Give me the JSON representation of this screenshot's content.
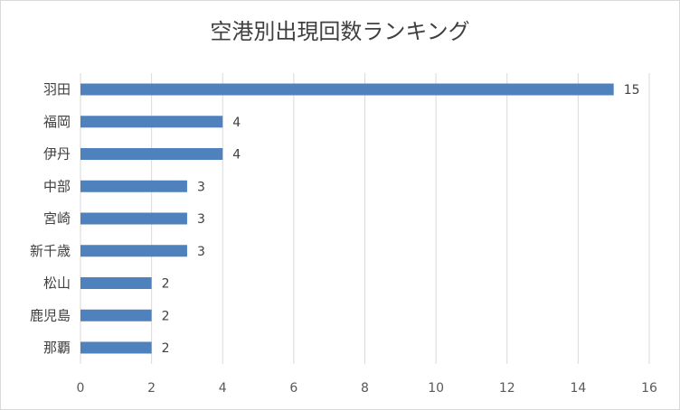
{
  "chart_data": {
    "type": "bar",
    "orientation": "horizontal",
    "title": "空港別出現回数ランキング",
    "categories": [
      "羽田",
      "福岡",
      "伊丹",
      "中部",
      "宮崎",
      "新千歳",
      "松山",
      "鹿児島",
      "那覇"
    ],
    "values": [
      15,
      4,
      4,
      3,
      3,
      3,
      2,
      2,
      2
    ],
    "data_labels": [
      "15",
      "4",
      "4",
      "3",
      "3",
      "3",
      "2",
      "2",
      "2"
    ],
    "xlim": [
      0,
      16
    ],
    "x_ticks": [
      0,
      2,
      4,
      6,
      8,
      10,
      12,
      14,
      16
    ],
    "grid": "vertical",
    "legend": "none",
    "bar_color": "#4f81bd",
    "grid_color": "#d9d9d9"
  }
}
